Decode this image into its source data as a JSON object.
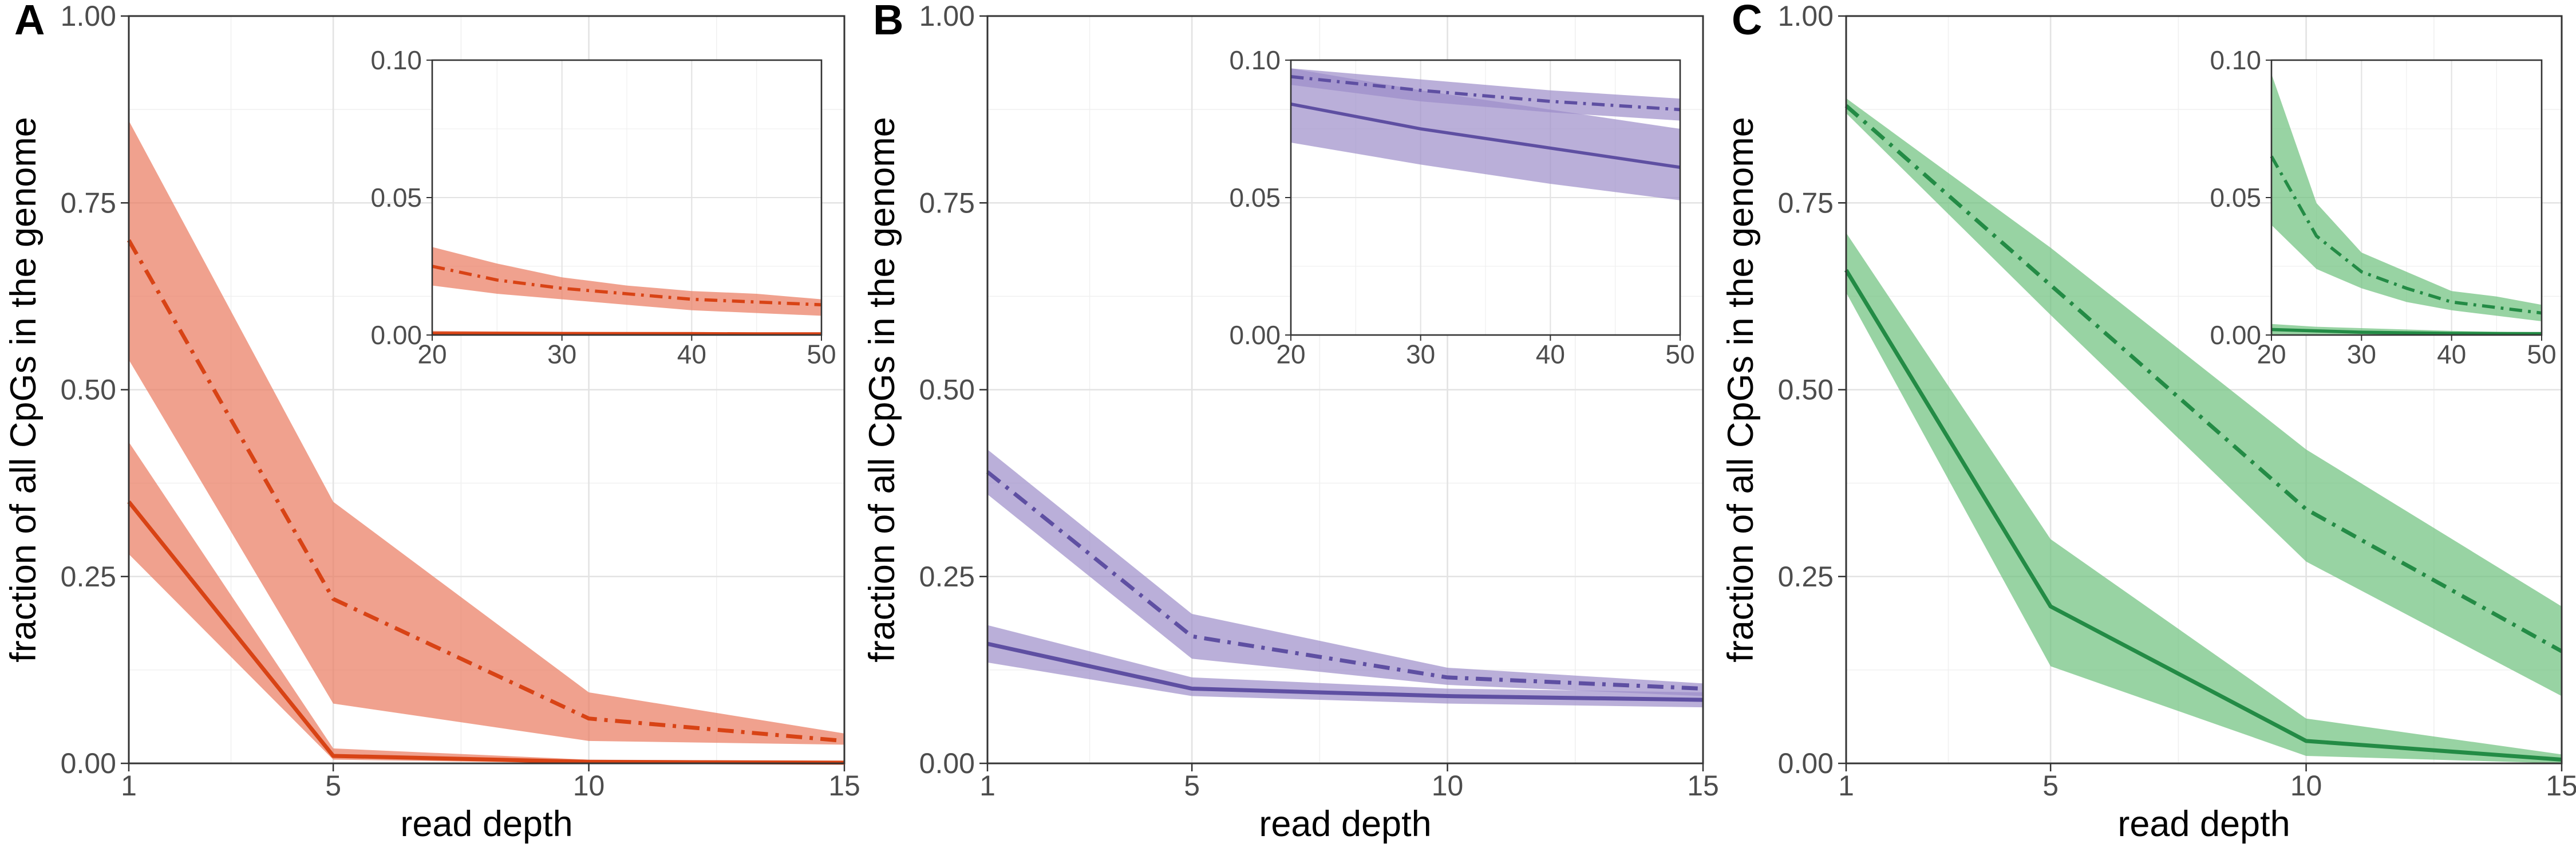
{
  "figure": {
    "panels": [
      {
        "letter": "A",
        "color": "#D84315",
        "fill_color": "#E9795E"
      },
      {
        "letter": "B",
        "color": "#5E4FA2",
        "fill_color": "#9C8DC9"
      },
      {
        "letter": "C",
        "color": "#238B45",
        "fill_color": "#6CC07C"
      }
    ]
  },
  "chart_data": [
    {
      "type": "line",
      "panel": "A",
      "xlabel": "read depth",
      "ylabel": "fraction of all CpGs in the genome",
      "x": [
        1,
        5,
        10,
        15
      ],
      "xticks": [
        1,
        5,
        10,
        15
      ],
      "xlim": [
        1,
        15
      ],
      "ylim": [
        0,
        1
      ],
      "yticks": [
        "0.00",
        "0.25",
        "0.50",
        "0.75",
        "1.00"
      ],
      "grid": true,
      "series": [
        {
          "line_style": "dashdot",
          "values": [
            0.7,
            0.22,
            0.06,
            0.03
          ],
          "lower": [
            0.54,
            0.08,
            0.03,
            0.025
          ],
          "upper": [
            0.86,
            0.35,
            0.095,
            0.04
          ]
        },
        {
          "line_style": "solid",
          "values": [
            0.35,
            0.01,
            0.002,
            0.001
          ],
          "lower": [
            0.28,
            0.005,
            0.0,
            0.0
          ],
          "upper": [
            0.43,
            0.02,
            0.005,
            0.003
          ]
        }
      ],
      "inset": {
        "x": [
          20,
          25,
          30,
          35,
          40,
          45,
          50
        ],
        "xticks": [
          20,
          30,
          40,
          50
        ],
        "xlim": [
          20,
          50
        ],
        "ylim": [
          0,
          0.1
        ],
        "yticks": [
          "0.00",
          "0.05",
          "0.10"
        ],
        "series": [
          {
            "line_style": "dashdot",
            "values": [
              0.025,
              0.02,
              0.017,
              0.015,
              0.013,
              0.012,
              0.011
            ],
            "lower": [
              0.018,
              0.015,
              0.013,
              0.011,
              0.009,
              0.008,
              0.007
            ],
            "upper": [
              0.032,
              0.026,
              0.021,
              0.018,
              0.016,
              0.015,
              0.013
            ]
          },
          {
            "line_style": "solid",
            "values": [
              0.0006,
              0.0006,
              0.0005,
              0.0005,
              0.0005,
              0.0004,
              0.0004
            ],
            "lower": [
              0.0,
              0.0,
              0.0,
              0.0,
              0.0,
              0.0,
              0.0
            ],
            "upper": [
              0.0015,
              0.0013,
              0.0012,
              0.0011,
              0.001,
              0.001,
              0.001
            ]
          }
        ]
      }
    },
    {
      "type": "line",
      "panel": "B",
      "xlabel": "read depth",
      "ylabel": "fraction of all CpGs in the genome",
      "x": [
        1,
        5,
        10,
        15
      ],
      "xticks": [
        1,
        5,
        10,
        15
      ],
      "xlim": [
        1,
        15
      ],
      "ylim": [
        0,
        1
      ],
      "yticks": [
        "0.00",
        "0.25",
        "0.50",
        "0.75",
        "1.00"
      ],
      "grid": true,
      "series": [
        {
          "line_style": "dashdot",
          "values": [
            0.39,
            0.17,
            0.115,
            0.1
          ],
          "lower": [
            0.36,
            0.14,
            0.105,
            0.09
          ],
          "upper": [
            0.42,
            0.2,
            0.128,
            0.107
          ]
        },
        {
          "line_style": "solid",
          "values": [
            0.16,
            0.1,
            0.09,
            0.085
          ],
          "lower": [
            0.135,
            0.09,
            0.08,
            0.075
          ],
          "upper": [
            0.185,
            0.115,
            0.1,
            0.095
          ]
        }
      ],
      "inset": {
        "x": [
          20,
          30,
          40,
          50
        ],
        "xticks": [
          20,
          30,
          40,
          50
        ],
        "xlim": [
          20,
          50
        ],
        "ylim": [
          0,
          0.1
        ],
        "yticks": [
          "0.00",
          "0.05",
          "0.10"
        ],
        "series": [
          {
            "line_style": "dashdot",
            "values": [
              0.094,
              0.089,
              0.085,
              0.082
            ],
            "lower": [
              0.091,
              0.085,
              0.081,
              0.078
            ],
            "upper": [
              0.097,
              0.093,
              0.089,
              0.086
            ]
          },
          {
            "line_style": "solid",
            "values": [
              0.084,
              0.075,
              0.068,
              0.061
            ],
            "lower": [
              0.07,
              0.062,
              0.055,
              0.049
            ],
            "upper": [
              0.097,
              0.089,
              0.082,
              0.075
            ]
          }
        ]
      }
    },
    {
      "type": "line",
      "panel": "C",
      "xlabel": "read depth",
      "ylabel": "fraction of all CpGs in the genome",
      "x": [
        1,
        5,
        10,
        15
      ],
      "xticks": [
        1,
        5,
        10,
        15
      ],
      "xlim": [
        1,
        15
      ],
      "ylim": [
        0,
        1
      ],
      "yticks": [
        "0.00",
        "0.25",
        "0.50",
        "0.75",
        "1.00"
      ],
      "grid": true,
      "series": [
        {
          "line_style": "dashdot",
          "values": [
            0.88,
            0.64,
            0.34,
            0.15
          ],
          "lower": [
            0.87,
            0.6,
            0.27,
            0.09
          ],
          "upper": [
            0.89,
            0.69,
            0.42,
            0.21
          ]
        },
        {
          "line_style": "solid",
          "values": [
            0.66,
            0.21,
            0.03,
            0.005
          ],
          "lower": [
            0.63,
            0.13,
            0.01,
            0.0
          ],
          "upper": [
            0.71,
            0.3,
            0.06,
            0.012
          ]
        }
      ],
      "inset": {
        "x": [
          20,
          25,
          30,
          35,
          40,
          45,
          50
        ],
        "xticks": [
          20,
          30,
          40,
          50
        ],
        "xlim": [
          20,
          50
        ],
        "ylim": [
          0,
          0.1
        ],
        "yticks": [
          "0.00",
          "0.05",
          "0.10"
        ],
        "series": [
          {
            "line_style": "dashdot",
            "values": [
              0.065,
              0.036,
              0.023,
              0.017,
              0.012,
              0.01,
              0.008
            ],
            "lower": [
              0.04,
              0.024,
              0.017,
              0.012,
              0.009,
              0.007,
              0.005
            ],
            "upper": [
              0.095,
              0.048,
              0.03,
              0.023,
              0.016,
              0.014,
              0.011
            ]
          },
          {
            "line_style": "solid",
            "values": [
              0.002,
              0.0015,
              0.001,
              0.0008,
              0.0006,
              0.0005,
              0.0005
            ],
            "lower": [
              0.0,
              0.0,
              0.0,
              0.0,
              0.0,
              0.0,
              0.0
            ],
            "upper": [
              0.004,
              0.003,
              0.0025,
              0.002,
              0.0015,
              0.0012,
              0.001
            ]
          }
        ]
      }
    }
  ]
}
